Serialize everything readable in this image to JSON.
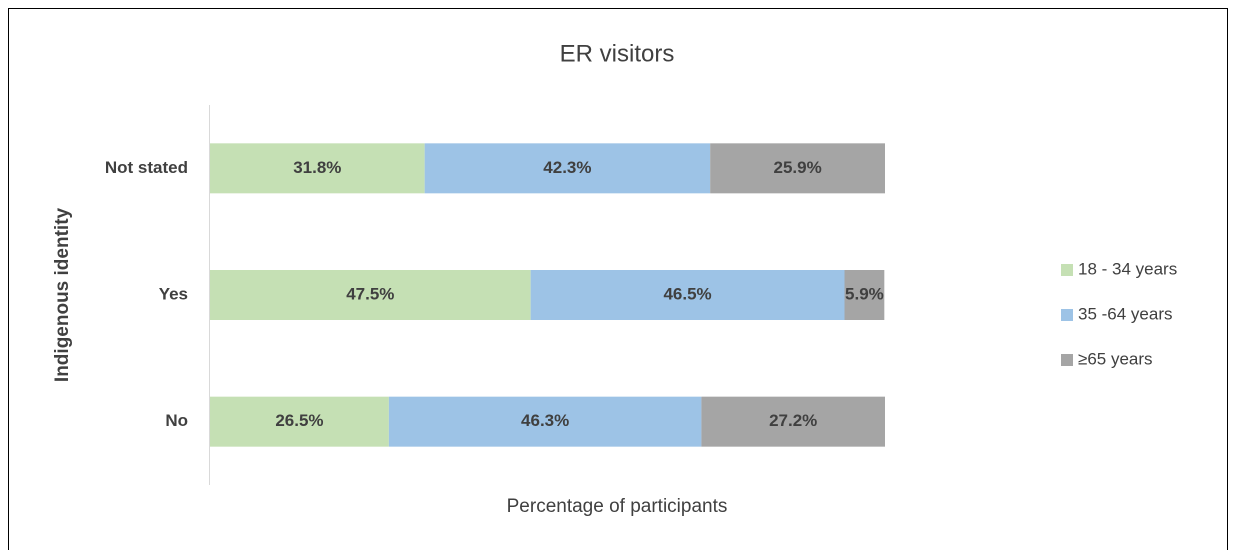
{
  "chart_data": {
    "type": "stacked-bar-horizontal",
    "title": "ER visitors",
    "x_label": "Percentage of participants",
    "y_label": "Indigenous identity",
    "categories": [
      "Not stated",
      "Yes",
      "No"
    ],
    "series": [
      {
        "name": "18 - 34 years",
        "color": "#c5e0b4",
        "values": [
          31.8,
          47.5,
          26.5
        ],
        "value_labels": [
          "31.8%",
          "47.5%",
          "26.5%"
        ]
      },
      {
        "name": "35 -64  years",
        "color": "#9dc3e6",
        "values": [
          42.3,
          46.5,
          46.3
        ],
        "value_labels": [
          "42.3%",
          "46.5%",
          "46.3%"
        ]
      },
      {
        "name": "≥65 years",
        "color": "#a5a5a5",
        "values": [
          25.9,
          5.9,
          27.2
        ],
        "value_labels": [
          "25.9%",
          "5.9%",
          "27.2%"
        ]
      }
    ],
    "xlim": [
      0,
      100
    ],
    "legend": "right"
  }
}
